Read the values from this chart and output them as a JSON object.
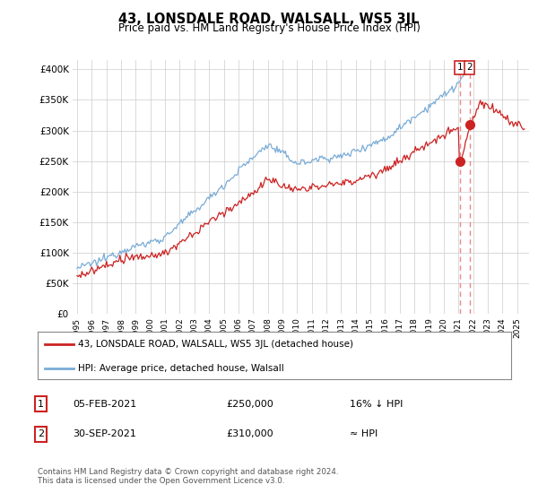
{
  "title": "43, LONSDALE ROAD, WALSALL, WS5 3JL",
  "subtitle": "Price paid vs. HM Land Registry's House Price Index (HPI)",
  "ylabel_ticks": [
    "£0",
    "£50K",
    "£100K",
    "£150K",
    "£200K",
    "£250K",
    "£300K",
    "£350K",
    "£400K"
  ],
  "ytick_values": [
    0,
    50000,
    100000,
    150000,
    200000,
    250000,
    300000,
    350000,
    400000
  ],
  "ylim": [
    0,
    415000
  ],
  "xlim_start": 1994.7,
  "xlim_end": 2025.8,
  "hpi_color": "#7aacd6",
  "price_color": "#cc2222",
  "marker_color": "#cc2222",
  "dashed_line_color": "#ee8888",
  "t1_x": 2021.09,
  "t1_y": 250000,
  "t2_x": 2021.75,
  "t2_y": 310000,
  "legend_label1": "43, LONSDALE ROAD, WALSALL, WS5 3JL (detached house)",
  "legend_label2": "HPI: Average price, detached house, Walsall",
  "note1_num": "1",
  "note1_date": "05-FEB-2021",
  "note1_price": "£250,000",
  "note1_change": "16% ↓ HPI",
  "note2_num": "2",
  "note2_date": "30-SEP-2021",
  "note2_price": "£310,000",
  "note2_change": "≈ HPI",
  "footnote": "Contains HM Land Registry data © Crown copyright and database right 2024.\nThis data is licensed under the Open Government Licence v3.0.",
  "background_color": "#ffffff",
  "grid_color": "#cccccc"
}
